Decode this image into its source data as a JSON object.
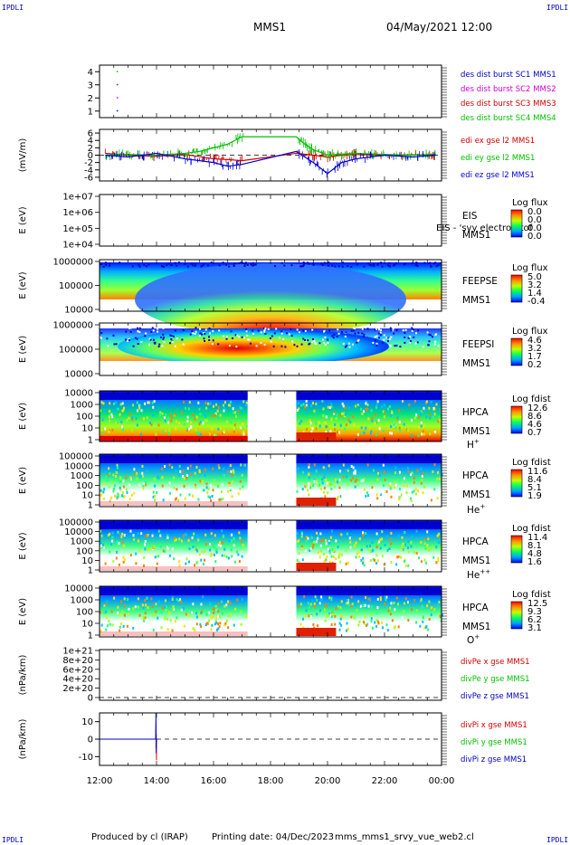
{
  "header": {
    "corner_tl": "IPDLI",
    "corner_tr": "IPDLI",
    "corner_bl": "IPDLI",
    "corner_br": "IPDLI",
    "spacecraft": "MMS1",
    "datetime": "04/May/2021 12:00"
  },
  "footer": {
    "produced": "Produced by cl (IRAP)",
    "printing": "Printing date: 04/Dec/2023",
    "script": "mms_mms1_srvy_vue_web2.cl"
  },
  "colors": {
    "blue": "#0000d0",
    "red": "#d00000",
    "green": "#00c000",
    "magenta": "#d000d0",
    "legend_blue": "#0000c0"
  },
  "chart_data": [
    {
      "type": "scatter",
      "panel": "config",
      "ylim": [
        0.5,
        4.5
      ],
      "yticks": [
        "1",
        "2",
        "3",
        "4"
      ],
      "series": [
        {
          "name": "des dist burst SC1 MMS1",
          "color": "#0000c0",
          "x": [
            12.6
          ],
          "y": [
            1
          ]
        },
        {
          "name": "des dist burst SC2 MMS2",
          "color": "#d000d0",
          "x": [
            12.6
          ],
          "y": [
            2
          ]
        },
        {
          "name": "des dist burst SC3 MMS3",
          "color": "#d00000",
          "x": [
            12.6
          ],
          "y": [
            3
          ]
        },
        {
          "name": "des dist burst SC4 MMS4",
          "color": "#00c000",
          "x": [
            12.6
          ],
          "y": [
            4
          ]
        }
      ]
    },
    {
      "type": "line",
      "panel": "edi",
      "ylabel": "(mV/m)",
      "ylim": [
        -7,
        7
      ],
      "yticks": [
        "6",
        "4",
        "2",
        "0",
        "-2",
        "-4",
        "-6"
      ],
      "zero_line": true,
      "series": [
        {
          "name": "edi ex gse l2 MMS1",
          "color": "#d00000",
          "x": [
            12.2,
            13,
            14,
            15,
            16,
            16.5,
            17,
            18.9,
            19.5,
            20,
            20.5,
            21,
            22,
            23,
            23.8
          ],
          "y": [
            0.5,
            0,
            -0.3,
            0.2,
            -1,
            -1.2,
            -1.5,
            0.5,
            0,
            -0.5,
            0,
            0.2,
            0,
            0.1,
            0
          ]
        },
        {
          "name": "edi ey gse l2 MMS1",
          "color": "#00c000",
          "x": [
            12.2,
            13,
            14,
            15,
            15.5,
            16,
            16.5,
            17,
            18.9,
            19.2,
            19.5,
            20,
            20.5,
            21,
            22,
            23,
            23.8
          ],
          "y": [
            0,
            0.2,
            0,
            0.5,
            1,
            2,
            3,
            5,
            5,
            3,
            1.5,
            0,
            0.3,
            0.5,
            0.2,
            0,
            0.3
          ]
        },
        {
          "name": "edi ez gse l2 MMS1",
          "color": "#0000d0",
          "x": [
            12.2,
            13,
            14,
            15,
            16,
            16.5,
            17,
            18.9,
            19.5,
            20,
            20.5,
            21,
            22,
            23,
            23.8
          ],
          "y": [
            0,
            -0.5,
            0.5,
            -1,
            -2,
            -3,
            -2.5,
            1,
            -2,
            -5,
            -2,
            -1,
            0,
            -0.5,
            0
          ]
        }
      ]
    },
    {
      "type": "heatmap",
      "panel": "eis",
      "ylabel": "E (eV)",
      "yticks": [
        "1e+07",
        "1e+06",
        "1e+05",
        "1e+04"
      ],
      "instrument": "EIS",
      "sc": "MMS1",
      "overlay_text": "EIS - 'svy electron tof",
      "cbar_title": "Log flux",
      "cbar_ticks": [
        "0.0",
        "0.0",
        "0.0",
        "0.0"
      ]
    },
    {
      "type": "heatmap",
      "panel": "feepse",
      "ylabel": "E (eV)",
      "yticks": [
        "1000000",
        "100000",
        "10000"
      ],
      "instrument": "FEEPSE",
      "sc": "MMS1",
      "cbar_title": "Log flux",
      "cbar_ticks": [
        "5.0",
        "3.2",
        "1.4",
        "-0.4"
      ]
    },
    {
      "type": "heatmap",
      "panel": "feepsi",
      "ylabel": "E (eV)",
      "yticks": [
        "1000000",
        "100000",
        "10000"
      ],
      "instrument": "FEEPSI",
      "sc": "MMS1",
      "cbar_title": "Log flux",
      "cbar_ticks": [
        "4.6",
        "3.2",
        "1.7",
        "0.2"
      ]
    },
    {
      "type": "heatmap",
      "panel": "hpca_h",
      "ylabel": "E (eV)",
      "yticks": [
        "10000",
        "1000",
        "100",
        "10",
        "1"
      ],
      "instrument": "HPCA",
      "sc": "MMS1",
      "species": "H",
      "species_sup": "+",
      "cbar_title": "Log fdist",
      "cbar_ticks": [
        "12.6",
        "8.6",
        "4.6",
        "0.7"
      ],
      "data_gap_hours": [
        17.2,
        18.9
      ]
    },
    {
      "type": "heatmap",
      "panel": "hpca_he1",
      "ylabel": "E (eV)",
      "yticks": [
        "100000",
        "10000",
        "1000",
        "100",
        "10",
        "1"
      ],
      "instrument": "HPCA",
      "sc": "MMS1",
      "species": "He",
      "species_sup": "+",
      "cbar_title": "Log fdist",
      "cbar_ticks": [
        "11.6",
        "8.4",
        "5.1",
        "1.9"
      ],
      "data_gap_hours": [
        17.2,
        18.9
      ]
    },
    {
      "type": "heatmap",
      "panel": "hpca_he2",
      "ylabel": "E (eV)",
      "yticks": [
        "100000",
        "10000",
        "1000",
        "100",
        "10",
        "1"
      ],
      "instrument": "HPCA",
      "sc": "MMS1",
      "species": "He",
      "species_sup": "++",
      "cbar_title": "Log fdist",
      "cbar_ticks": [
        "11.4",
        "8.1",
        "4.8",
        "1.6"
      ],
      "data_gap_hours": [
        17.2,
        18.9
      ]
    },
    {
      "type": "heatmap",
      "panel": "hpca_o",
      "ylabel": "E (eV)",
      "yticks": [
        "10000",
        "1000",
        "100",
        "10",
        "1"
      ],
      "instrument": "HPCA",
      "sc": "MMS1",
      "species": "O",
      "species_sup": "+",
      "cbar_title": "Log fdist",
      "cbar_ticks": [
        "12.5",
        "9.3",
        "6.2",
        "3.1"
      ],
      "data_gap_hours": [
        17.2,
        18.9
      ]
    },
    {
      "type": "line",
      "panel": "divpe",
      "ylabel": "(nPa/km)",
      "yticks": [
        "1e+21",
        "8e+20",
        "6e+20",
        "4e+20",
        "2e+20",
        "0"
      ],
      "zero_line": true,
      "series": [
        {
          "name": "divPe x gse MMS1",
          "color": "#d00000"
        },
        {
          "name": "divPe y gse MMS1",
          "color": "#00c000"
        },
        {
          "name": "divPe z gse MMS1",
          "color": "#0000c0"
        }
      ]
    },
    {
      "type": "line",
      "panel": "divpi",
      "ylabel": "(nPa/km)",
      "ylim": [
        -15,
        15
      ],
      "yticks": [
        "10",
        "0",
        "-10"
      ],
      "zero_line": true,
      "series": [
        {
          "name": "divPi x gse MMS1",
          "color": "#d00000",
          "x": [
            13.98,
            13.99,
            14.0
          ],
          "y": [
            -5,
            3,
            -12
          ]
        },
        {
          "name": "divPi y gse MMS1",
          "color": "#00c000",
          "x": [
            13.98,
            14.0
          ],
          "y": [
            0,
            -1
          ]
        },
        {
          "name": "divPi z gse MMS1",
          "color": "#0000c0",
          "x": [
            13.97,
            13.98,
            13.99,
            14.0
          ],
          "y": [
            0,
            15,
            -8,
            0
          ]
        }
      ]
    }
  ],
  "xaxis": {
    "tick_labels": [
      "12:00",
      "14:00",
      "16:00",
      "18:00",
      "20:00",
      "22:00",
      "00:00"
    ],
    "range_hours": [
      12,
      24
    ]
  }
}
